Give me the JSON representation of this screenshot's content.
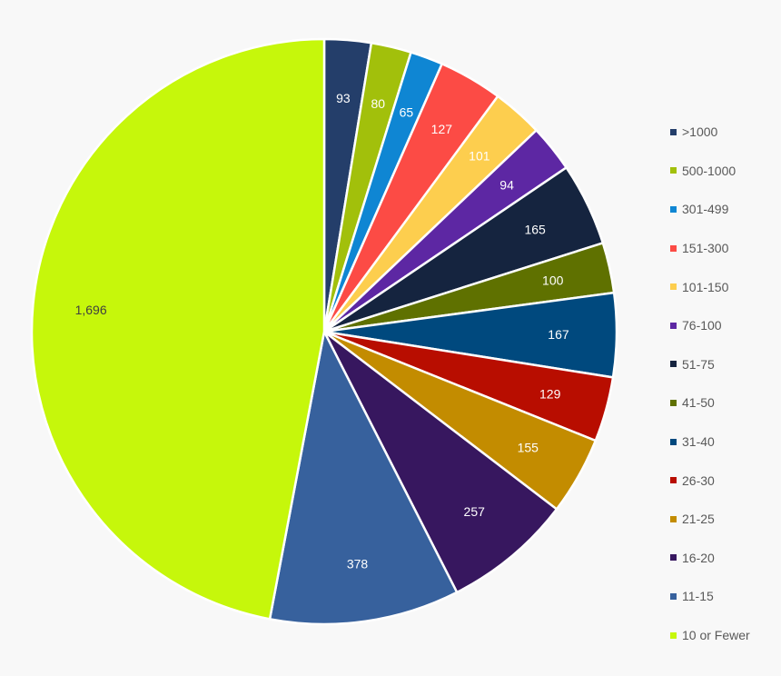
{
  "chart_data": {
    "type": "pie",
    "title": "",
    "start_angle_deg": 0,
    "direction": "clockwise",
    "legend_position": "right",
    "slices": [
      {
        "name": ">1000",
        "value": 93,
        "label": "93",
        "color": "#243e6a",
        "label_color": "#ffffff"
      },
      {
        "name": "500-1000",
        "value": 80,
        "label": "80",
        "color": "#a2c00b",
        "label_color": "#ffffff"
      },
      {
        "name": "301-499",
        "value": 65,
        "label": "65",
        "color": "#0f86d3",
        "label_color": "#ffffff"
      },
      {
        "name": "151-300",
        "value": 127,
        "label": "127",
        "color": "#fc4b45",
        "label_color": "#ffffff"
      },
      {
        "name": "101-150",
        "value": 101,
        "label": "101",
        "color": "#fdce4e",
        "label_color": "#ffffff"
      },
      {
        "name": "76-100",
        "value": 94,
        "label": "94",
        "color": "#5d27a3",
        "label_color": "#ffffff"
      },
      {
        "name": "51-75",
        "value": 165,
        "label": "165",
        "color": "#15243f",
        "label_color": "#ffffff"
      },
      {
        "name": "41-50",
        "value": 100,
        "label": "100",
        "color": "#5f7100",
        "label_color": "#ffffff"
      },
      {
        "name": "31-40",
        "value": 167,
        "label": "167",
        "color": "#00497e",
        "label_color": "#ffffff"
      },
      {
        "name": "26-30",
        "value": 129,
        "label": "129",
        "color": "#b80d00",
        "label_color": "#ffffff"
      },
      {
        "name": "21-25",
        "value": 155,
        "label": "155",
        "color": "#c38c00",
        "label_color": "#ffffff"
      },
      {
        "name": "16-20",
        "value": 257,
        "label": "257",
        "color": "#37175f",
        "label_color": "#ffffff"
      },
      {
        "name": "11-15",
        "value": 378,
        "label": "378",
        "color": "#37619d",
        "label_color": "#ffffff"
      },
      {
        "name": "10 or Fewer",
        "value": 1696,
        "label": "1,696",
        "color": "#c6f70b",
        "label_color": "#404040"
      }
    ]
  }
}
